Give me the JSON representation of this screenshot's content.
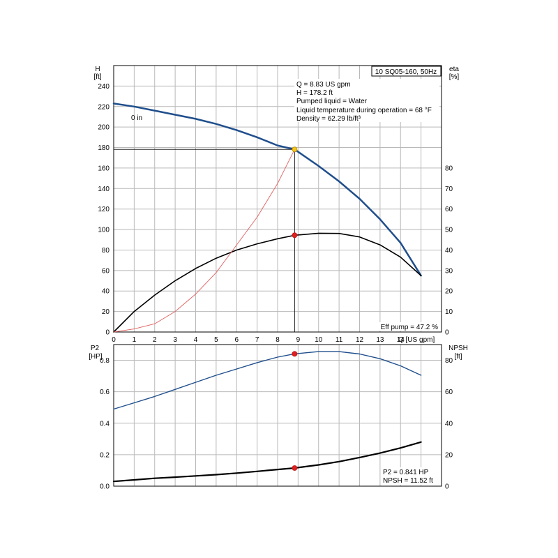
{
  "chart_data": [
    {
      "type": "line",
      "title": "10 SQ05-160, 50Hz",
      "xlabel": "Q [US gpm]",
      "x_ticks": [
        "0",
        "1",
        "2",
        "3",
        "4",
        "5",
        "6",
        "7",
        "8",
        "9",
        "10",
        "11",
        "12",
        "13",
        "14"
      ],
      "xlim": [
        0,
        16
      ],
      "y_left": {
        "label_line1": "H",
        "label_line2": "[ft]",
        "ticks": [
          "0",
          "20",
          "40",
          "60",
          "80",
          "100",
          "120",
          "140",
          "160",
          "180",
          "200",
          "220",
          "240"
        ],
        "range": [
          0,
          260
        ]
      },
      "y_right": {
        "label_line1": "eta",
        "label_line2": "[%]",
        "ticks": [
          "0",
          "10",
          "20",
          "30",
          "40",
          "50",
          "60",
          "70",
          "80"
        ],
        "range": [
          0,
          130
        ]
      },
      "curve_label": "0 in",
      "info_lines": [
        "Q = 8.83 US gpm",
        "H = 178.2 ft",
        "Pumped liquid = Water",
        "Liquid temperature during operation = 68 °F",
        "Density = 62.29 lb/ft³"
      ],
      "footer_text": "Eff pump = 47.2 %",
      "duty_point": {
        "q": 8.83,
        "h": 178.2,
        "eta": 47.2
      },
      "series": [
        {
          "name": "H",
          "axis": "left",
          "color": "#1f4e8c",
          "x": [
            0,
            1,
            2,
            3,
            4,
            5,
            6,
            7,
            8,
            8.83,
            10,
            11,
            12,
            13,
            14,
            15
          ],
          "y": [
            223,
            220,
            216,
            212,
            208,
            203,
            197,
            190,
            182,
            178.2,
            162,
            147,
            130,
            110,
            87,
            55
          ]
        },
        {
          "name": "eta",
          "axis": "right",
          "color": "#000000",
          "x": [
            0,
            1,
            2,
            3,
            4,
            5,
            6,
            7,
            8,
            8.83,
            10,
            11,
            12,
            13,
            14,
            15
          ],
          "y": [
            0,
            10,
            18,
            25,
            31,
            36,
            40,
            43,
            45.5,
            47.2,
            48.2,
            48.1,
            46.4,
            42.5,
            36.5,
            27.5
          ]
        },
        {
          "name": "system",
          "axis": "left",
          "color": "#e06060",
          "x": [
            0,
            1,
            2,
            3,
            4,
            5,
            6,
            7,
            8,
            8.83
          ],
          "y": [
            0,
            3,
            8,
            20,
            37,
            58,
            85,
            112,
            145,
            178.2
          ]
        }
      ]
    },
    {
      "type": "line",
      "x_ticks": [
        "0",
        "1",
        "2",
        "3",
        "4",
        "5",
        "6",
        "7",
        "8",
        "9",
        "10",
        "11",
        "12",
        "13",
        "14"
      ],
      "xlim": [
        0,
        16
      ],
      "y_left": {
        "label_line1": "P2",
        "label_line2": "[HP]",
        "ticks": [
          "0.0",
          "0.2",
          "0.4",
          "0.6",
          "0.8"
        ],
        "range": [
          0,
          0.9
        ]
      },
      "y_right": {
        "label_line1": "NPSH",
        "label_line2": "[ft]",
        "ticks": [
          "0",
          "20",
          "40",
          "60",
          "80"
        ],
        "range": [
          0,
          90
        ]
      },
      "footer_lines": [
        "P2 = 0.841 HP",
        "NPSH = 11.52 ft"
      ],
      "duty_point": {
        "q": 8.83,
        "p2": 0.841,
        "npsh": 11.52
      },
      "series": [
        {
          "name": "P2",
          "axis": "left",
          "color": "#1f4e8c",
          "x": [
            0,
            1,
            2,
            3,
            4,
            5,
            6,
            7,
            8,
            8.83,
            10,
            11,
            12,
            13,
            14,
            15
          ],
          "y": [
            0.49,
            0.53,
            0.57,
            0.615,
            0.66,
            0.705,
            0.745,
            0.785,
            0.82,
            0.841,
            0.855,
            0.855,
            0.84,
            0.81,
            0.765,
            0.705
          ]
        },
        {
          "name": "NPSH",
          "axis": "right",
          "color": "#000000",
          "x": [
            0,
            1,
            2,
            3,
            4,
            5,
            6,
            7,
            8,
            8.83,
            10,
            11,
            12,
            13,
            14,
            15
          ],
          "y": [
            3,
            4,
            5,
            5.7,
            6.5,
            7.3,
            8.3,
            9.4,
            10.6,
            11.52,
            13.5,
            15.6,
            18.2,
            21,
            24.3,
            28
          ]
        }
      ]
    }
  ]
}
